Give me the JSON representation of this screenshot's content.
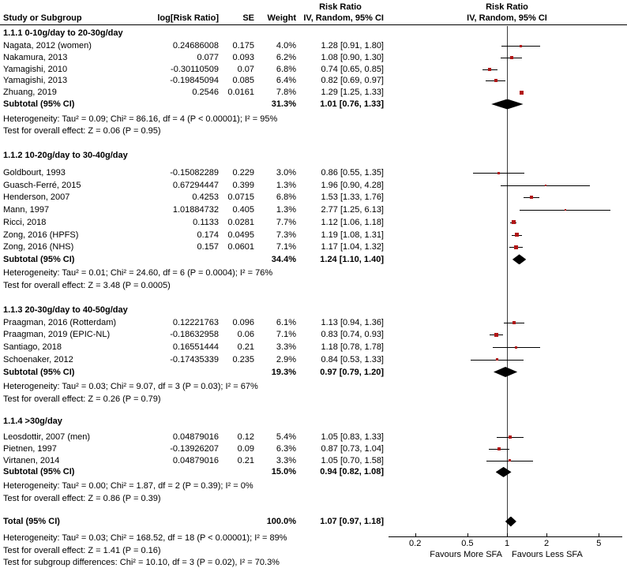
{
  "header": {
    "study": "Study or Subgroup",
    "log_rr": "log[Risk Ratio]",
    "se": "SE",
    "weight": "Weight",
    "effect": "Risk Ratio",
    "method_ci": "IV, Random, 95% CI"
  },
  "colors": {
    "marker": "#b11717",
    "diamond": "#000000",
    "ci_line": "#000000",
    "no_effect_line": "#3c3c3c",
    "axis": "#000000",
    "text": "#000000"
  },
  "chart_data": {
    "type": "forest",
    "effect_measure": "Risk Ratio",
    "model": "IV, Random, 95% CI",
    "x_axis": {
      "scale": "log",
      "ticks": [
        0.2,
        0.5,
        1,
        2,
        5
      ],
      "no_effect": 1
    },
    "favours_left": "Favours More SFA",
    "favours_right": "Favours Less SFA",
    "sections": [
      {
        "title": "1.1.1 0-10g/day to 20-30g/day",
        "studies": [
          {
            "name": "Nagata, 2012 (women)",
            "log_rr": "0.24686008",
            "se": "0.175",
            "weight": "4.0%",
            "weight_pct": 4.0,
            "ci_text": "1.28 [0.91, 1.80]",
            "rr": 1.28,
            "lo": 0.91,
            "hi": 1.8
          },
          {
            "name": "Nakamura, 2013",
            "log_rr": "0.077",
            "se": "0.093",
            "weight": "6.2%",
            "weight_pct": 6.2,
            "ci_text": "1.08 [0.90, 1.30]",
            "rr": 1.08,
            "lo": 0.9,
            "hi": 1.3
          },
          {
            "name": "Yamagishi, 2010",
            "log_rr": "-0.30110509",
            "se": "0.07",
            "weight": "6.8%",
            "weight_pct": 6.8,
            "ci_text": "0.74 [0.65, 0.85]",
            "rr": 0.74,
            "lo": 0.65,
            "hi": 0.85
          },
          {
            "name": "Yamagishi, 2013",
            "log_rr": "-0.19845094",
            "se": "0.085",
            "weight": "6.4%",
            "weight_pct": 6.4,
            "ci_text": "0.82 [0.69, 0.97]",
            "rr": 0.82,
            "lo": 0.69,
            "hi": 0.97
          },
          {
            "name": "Zhuang, 2019",
            "log_rr": "0.2546",
            "se": "0.0161",
            "weight": "7.8%",
            "weight_pct": 7.8,
            "ci_text": "1.29 [1.25, 1.33]",
            "rr": 1.29,
            "lo": 1.25,
            "hi": 1.33
          }
        ],
        "subtotal": {
          "label": "Subtotal (95% CI)",
          "weight": "31.3%",
          "ci_text": "1.01 [0.76, 1.33]",
          "rr": 1.01,
          "lo": 0.76,
          "hi": 1.33
        },
        "heterogeneity": "Heterogeneity: Tau² = 0.09; Chi² = 86.16, df = 4 (P < 0.00001); I² = 95%",
        "overall_effect": "Test for overall effect: Z = 0.06 (P = 0.95)"
      },
      {
        "title": "1.1.2 10-20g/day to 30-40g/day",
        "studies": [
          {
            "name": "Goldbourt, 1993",
            "log_rr": "-0.15082289",
            "se": "0.229",
            "weight": "3.0%",
            "weight_pct": 3.0,
            "ci_text": "0.86 [0.55, 1.35]",
            "rr": 0.86,
            "lo": 0.55,
            "hi": 1.35
          },
          {
            "name": "Guasch-Ferré, 2015",
            "log_rr": "0.67294447",
            "se": "0.399",
            "weight": "1.3%",
            "weight_pct": 1.3,
            "ci_text": "1.96 [0.90, 4.28]",
            "rr": 1.96,
            "lo": 0.9,
            "hi": 4.28
          },
          {
            "name": "Henderson, 2007",
            "log_rr": "0.4253",
            "se": "0.0715",
            "weight": "6.8%",
            "weight_pct": 6.8,
            "ci_text": "1.53 [1.33, 1.76]",
            "rr": 1.53,
            "lo": 1.33,
            "hi": 1.76
          },
          {
            "name": "Mann, 1997",
            "log_rr": "1.01884732",
            "se": "0.405",
            "weight": "1.3%",
            "weight_pct": 1.3,
            "ci_text": "2.77 [1.25, 6.13]",
            "rr": 2.77,
            "lo": 1.25,
            "hi": 6.13
          },
          {
            "name": "Ricci, 2018",
            "log_rr": "0.1133",
            "se": "0.0281",
            "weight": "7.7%",
            "weight_pct": 7.7,
            "ci_text": "1.12 [1.06, 1.18]",
            "rr": 1.12,
            "lo": 1.06,
            "hi": 1.18
          },
          {
            "name": "Zong, 2016 (HPFS)",
            "log_rr": "0.174",
            "se": "0.0495",
            "weight": "7.3%",
            "weight_pct": 7.3,
            "ci_text": "1.19 [1.08, 1.31]",
            "rr": 1.19,
            "lo": 1.08,
            "hi": 1.31
          },
          {
            "name": "Zong, 2016 (NHS)",
            "log_rr": "0.157",
            "se": "0.0601",
            "weight": "7.1%",
            "weight_pct": 7.1,
            "ci_text": "1.17 [1.04, 1.32]",
            "rr": 1.17,
            "lo": 1.04,
            "hi": 1.32
          }
        ],
        "subtotal": {
          "label": "Subtotal (95% CI)",
          "weight": "34.4%",
          "ci_text": "1.24 [1.10, 1.40]",
          "rr": 1.24,
          "lo": 1.1,
          "hi": 1.4
        },
        "heterogeneity": "Heterogeneity: Tau² = 0.01; Chi² = 24.60, df = 6 (P = 0.0004); I² = 76%",
        "overall_effect": "Test for overall effect: Z = 3.48 (P = 0.0005)"
      },
      {
        "title": "1.1.3 20-30g/day to 40-50g/day",
        "studies": [
          {
            "name": "Praagman, 2016 (Rotterdam)",
            "log_rr": "0.12221763",
            "se": "0.096",
            "weight": "6.1%",
            "weight_pct": 6.1,
            "ci_text": "1.13 [0.94, 1.36]",
            "rr": 1.13,
            "lo": 0.94,
            "hi": 1.36
          },
          {
            "name": "Praagman, 2019 (EPIC-NL)",
            "log_rr": "-0.18632958",
            "se": "0.06",
            "weight": "7.1%",
            "weight_pct": 7.1,
            "ci_text": "0.83 [0.74, 0.93]",
            "rr": 0.83,
            "lo": 0.74,
            "hi": 0.93
          },
          {
            "name": "Santiago, 2018",
            "log_rr": "0.16551444",
            "se": "0.21",
            "weight": "3.3%",
            "weight_pct": 3.3,
            "ci_text": "1.18 [0.78, 1.78]",
            "rr": 1.18,
            "lo": 0.78,
            "hi": 1.78
          },
          {
            "name": "Schoenaker, 2012",
            "log_rr": "-0.17435339",
            "se": "0.235",
            "weight": "2.9%",
            "weight_pct": 2.9,
            "ci_text": "0.84 [0.53, 1.33]",
            "rr": 0.84,
            "lo": 0.53,
            "hi": 1.33
          }
        ],
        "subtotal": {
          "label": "Subtotal (95% CI)",
          "weight": "19.3%",
          "ci_text": "0.97 [0.79, 1.20]",
          "rr": 0.97,
          "lo": 0.79,
          "hi": 1.2
        },
        "heterogeneity": "Heterogeneity: Tau² = 0.03; Chi² = 9.07, df = 3 (P = 0.03); I² = 67%",
        "overall_effect": "Test for overall effect: Z = 0.26 (P = 0.79)"
      },
      {
        "title": "1.1.4 >30g/day",
        "studies": [
          {
            "name": "Leosdottir, 2007 (men)",
            "log_rr": "0.04879016",
            "se": "0.12",
            "weight": "5.4%",
            "weight_pct": 5.4,
            "ci_text": "1.05 [0.83, 1.33]",
            "rr": 1.05,
            "lo": 0.83,
            "hi": 1.33
          },
          {
            "name": "Pietnen, 1997",
            "log_rr": "-0.13926207",
            "se": "0.09",
            "weight": "6.3%",
            "weight_pct": 6.3,
            "ci_text": "0.87 [0.73, 1.04]",
            "rr": 0.87,
            "lo": 0.73,
            "hi": 1.04
          },
          {
            "name": "Virtanen, 2014",
            "log_rr": "0.04879016",
            "se": "0.21",
            "weight": "3.3%",
            "weight_pct": 3.3,
            "ci_text": "1.05 [0.70, 1.58]",
            "rr": 1.05,
            "lo": 0.7,
            "hi": 1.58
          }
        ],
        "subtotal": {
          "label": "Subtotal (95% CI)",
          "weight": "15.0%",
          "ci_text": "0.94 [0.82, 1.08]",
          "rr": 0.94,
          "lo": 0.82,
          "hi": 1.08
        },
        "heterogeneity": "Heterogeneity: Tau² = 0.00; Chi² = 1.87, df = 2 (P = 0.39); I² = 0%",
        "overall_effect": "Test for overall effect: Z = 0.86 (P = 0.39)"
      }
    ],
    "total": {
      "label": "Total (95% CI)",
      "weight": "100.0%",
      "ci_text": "1.07 [0.97, 1.18]",
      "rr": 1.07,
      "lo": 0.97,
      "hi": 1.18,
      "heterogeneity": "Heterogeneity: Tau² = 0.03; Chi² = 168.52, df = 18 (P < 0.00001); I² = 89%",
      "overall_effect": "Test for overall effect: Z = 1.41 (P = 0.16)",
      "subgroup_differences": "Test for subgroup differences: Chi² = 10.10, df = 3 (P = 0.02), I² = 70.3%"
    }
  }
}
